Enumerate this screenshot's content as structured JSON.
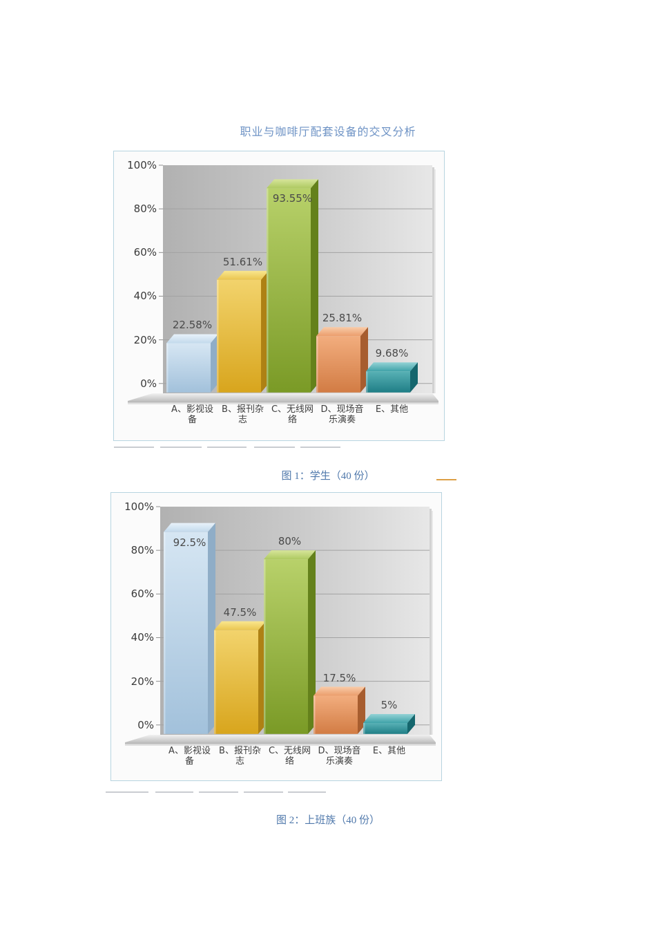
{
  "page": {
    "title": "职业与咖啡厅配套设备的交叉分析"
  },
  "palette": {
    "title_color": "#6e93c5",
    "caption_color": "#4f78ab",
    "panel_border": "#b7d4e0",
    "accent_underline": "#dd9f44",
    "wall_gray": [
      "#b1b1b1",
      "#e7e7e7"
    ],
    "bar_colors": [
      {
        "name": "light-blue",
        "top": [
          "#e8f2fa",
          "#c2d9ec"
        ],
        "front": [
          "#d6e6f3",
          "#a2c1db"
        ],
        "side": "#8fadc7"
      },
      {
        "name": "gold",
        "top": [
          "#f9e68e",
          "#eac54f"
        ],
        "front": [
          "#f2d36c",
          "#d8a51d"
        ],
        "side": "#ae8114"
      },
      {
        "name": "green",
        "top": [
          "#d6e59a",
          "#aec961"
        ],
        "front": [
          "#b8d16a",
          "#7a9a26"
        ],
        "side": "#64811b"
      },
      {
        "name": "orange",
        "top": [
          "#f9cba8",
          "#eb9d6c"
        ],
        "front": [
          "#f2ad7e",
          "#d27c44"
        ],
        "side": "#a75d2f"
      },
      {
        "name": "teal",
        "top": [
          "#93d2d5",
          "#3fa2a8"
        ],
        "front": [
          "#58b1b5",
          "#1f7e86"
        ],
        "side": "#15666d"
      }
    ]
  },
  "charts": [
    {
      "caption": "图 1：学生（40 份）",
      "chart_data": {
        "type": "bar",
        "title": "学生（40份）",
        "categories": [
          "A、影视设备",
          "B、报刊杂志",
          "C、无线网络",
          "D、现场音乐演奏",
          "E、其他"
        ],
        "category_lines": [
          [
            "A、影视设",
            "备"
          ],
          [
            "B、报刊杂",
            "志"
          ],
          [
            "C、无线网",
            "络"
          ],
          [
            "D、现场音",
            "乐演奏"
          ],
          [
            "E、其他",
            ""
          ]
        ],
        "values": [
          22.58,
          51.61,
          93.55,
          25.81,
          9.68
        ],
        "value_labels": [
          "22.58%",
          "51.61%",
          "93.55%",
          "25.81%",
          "9.68%"
        ],
        "y_ticks": [
          "100%",
          "80%",
          "60%",
          "40%",
          "20%",
          "0%"
        ],
        "ylim": [
          0,
          100
        ],
        "xlabel": "",
        "ylabel": "",
        "grid": true,
        "legend": false
      }
    },
    {
      "caption": "图 2：上班族（40 份）",
      "chart_data": {
        "type": "bar",
        "title": "上班族（40份）",
        "categories": [
          "A、影视设备",
          "B、报刊杂志",
          "C、无线网络",
          "D、现场音乐演奏",
          "E、其他"
        ],
        "category_lines": [
          [
            "A、影视设",
            "备"
          ],
          [
            "B、报刊杂",
            "志"
          ],
          [
            "C、无线网",
            "络"
          ],
          [
            "D、现场音",
            "乐演奏"
          ],
          [
            "E、其他",
            ""
          ]
        ],
        "values": [
          92.5,
          47.5,
          80,
          17.5,
          5
        ],
        "value_labels": [
          "92.5%",
          "47.5%",
          "80%",
          "17.5%",
          "5%"
        ],
        "y_ticks": [
          "100%",
          "80%",
          "60%",
          "40%",
          "20%",
          "0%"
        ],
        "ylim": [
          0,
          100
        ],
        "xlabel": "",
        "ylabel": "",
        "grid": true,
        "legend": false
      }
    }
  ]
}
